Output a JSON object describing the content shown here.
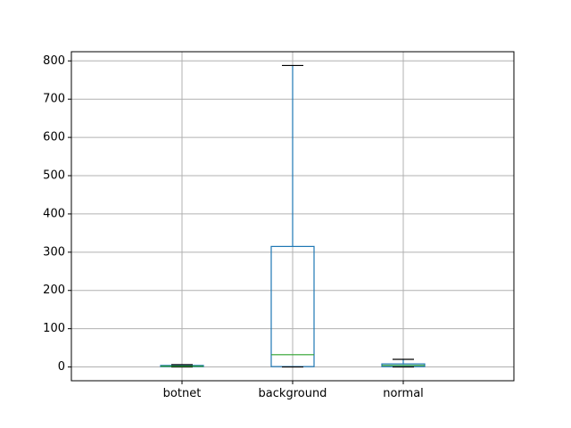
{
  "chart_data": {
    "type": "box",
    "title": "",
    "xlabel": "",
    "ylabel": "",
    "categories": [
      "botnet",
      "background",
      "normal"
    ],
    "ylim": [
      -36,
      824
    ],
    "yticks": [
      0,
      100,
      200,
      300,
      400,
      500,
      600,
      700,
      800
    ],
    "grid": true,
    "boxes": [
      {
        "name": "botnet",
        "whisker_low": 0,
        "q1": 1,
        "median": 2,
        "q3": 4,
        "whisker_high": 6
      },
      {
        "name": "background",
        "whisker_low": 0,
        "q1": 1,
        "median": 32,
        "q3": 315,
        "whisker_high": 788
      },
      {
        "name": "normal",
        "whisker_low": 0,
        "q1": 1,
        "median": 4,
        "q3": 8,
        "whisker_high": 20
      }
    ],
    "colors": {
      "box": "#1f77b4",
      "median": "#2ca02c",
      "whisker_cap": "#000000",
      "grid": "#b0b0b0"
    }
  }
}
